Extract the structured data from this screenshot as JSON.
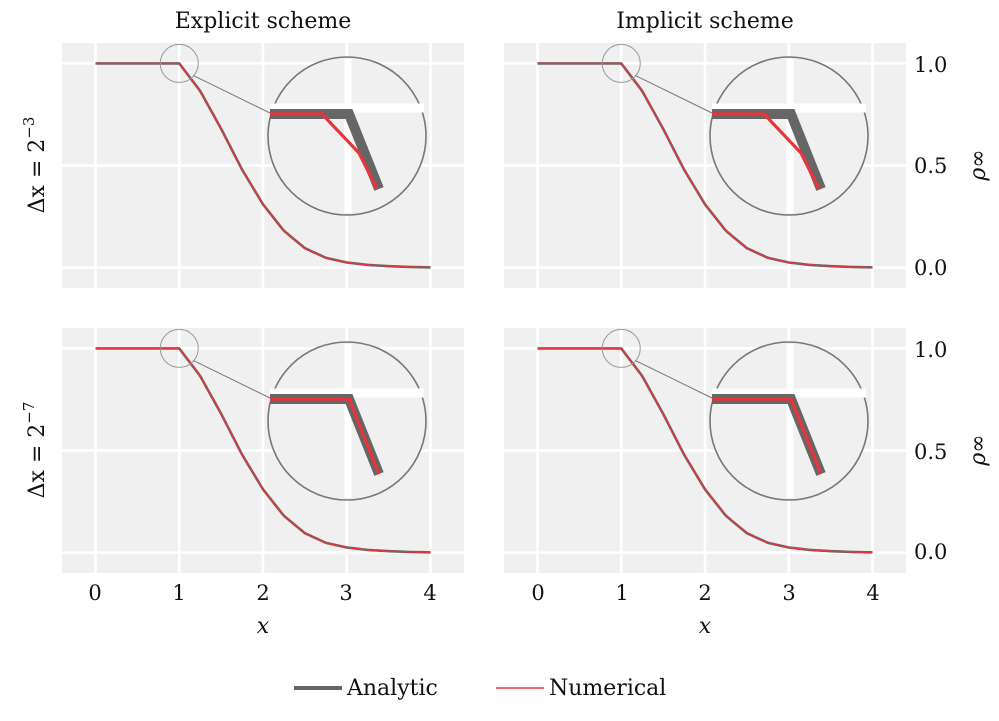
{
  "figure": {
    "colors": {
      "analytic": "#666666",
      "numerical": "#e8343a",
      "panel_bg": "#f0f0f0",
      "grid": "#ffffff",
      "zoom_stroke": "#777777"
    },
    "legend": {
      "analytic_label": "Analytic",
      "numerical_label": "Numerical"
    }
  },
  "chart_data": [
    {
      "type": "line",
      "column_title": "Explicit scheme",
      "row_label_base": "Δx = 2",
      "row_label_exp": "−3",
      "xlabel": "",
      "ylabel": "",
      "xlim": [
        -0.4,
        4.4
      ],
      "ylim": [
        -0.1,
        1.1
      ],
      "zoom_variant": "coarse",
      "series": [
        {
          "name": "Analytic",
          "x": [
            0,
            0.5,
            1,
            1.25,
            1.5,
            1.75,
            2,
            2.25,
            2.5,
            2.75,
            3,
            3.25,
            3.5,
            3.75,
            4
          ],
          "y": [
            1,
            1,
            1,
            0.865,
            0.68,
            0.48,
            0.31,
            0.18,
            0.095,
            0.048,
            0.025,
            0.013,
            0.007,
            0.003,
            0.001
          ]
        },
        {
          "name": "Numerical",
          "x": [
            0,
            0.5,
            1,
            1.25,
            1.5,
            1.75,
            2,
            2.25,
            2.5,
            2.75,
            3,
            3.25,
            3.5,
            3.75,
            4
          ],
          "y": [
            1,
            1,
            1,
            0.865,
            0.68,
            0.48,
            0.31,
            0.18,
            0.095,
            0.048,
            0.025,
            0.013,
            0.007,
            0.003,
            0.001
          ]
        }
      ]
    },
    {
      "type": "line",
      "column_title": "Implicit scheme",
      "xlabel": "",
      "ylabel": "ρ∞",
      "yticks": [
        "1.0",
        "0.5",
        "0.0"
      ],
      "xlim": [
        -0.4,
        4.4
      ],
      "ylim": [
        -0.1,
        1.1
      ],
      "zoom_variant": "coarse",
      "series": [
        {
          "name": "Analytic",
          "x": [
            0,
            0.5,
            1,
            1.25,
            1.5,
            1.75,
            2,
            2.25,
            2.5,
            2.75,
            3,
            3.25,
            3.5,
            3.75,
            4
          ],
          "y": [
            1,
            1,
            1,
            0.865,
            0.68,
            0.48,
            0.31,
            0.18,
            0.095,
            0.048,
            0.025,
            0.013,
            0.007,
            0.003,
            0.001
          ]
        },
        {
          "name": "Numerical",
          "x": [
            0,
            0.5,
            1,
            1.25,
            1.5,
            1.75,
            2,
            2.25,
            2.5,
            2.75,
            3,
            3.25,
            3.5,
            3.75,
            4
          ],
          "y": [
            1,
            1,
            1,
            0.865,
            0.68,
            0.48,
            0.31,
            0.18,
            0.095,
            0.048,
            0.025,
            0.013,
            0.007,
            0.003,
            0.001
          ]
        }
      ]
    },
    {
      "type": "line",
      "row_label_base": "Δx = 2",
      "row_label_exp": "−7",
      "xlabel": "x",
      "ylabel": "",
      "xticks": [
        "0",
        "1",
        "2",
        "3",
        "4"
      ],
      "xlim": [
        -0.4,
        4.4
      ],
      "ylim": [
        -0.1,
        1.1
      ],
      "zoom_variant": "fine",
      "series": [
        {
          "name": "Analytic",
          "x": [
            0,
            0.5,
            1,
            1.25,
            1.5,
            1.75,
            2,
            2.25,
            2.5,
            2.75,
            3,
            3.25,
            3.5,
            3.75,
            4
          ],
          "y": [
            1,
            1,
            1,
            0.865,
            0.68,
            0.48,
            0.31,
            0.18,
            0.095,
            0.048,
            0.025,
            0.013,
            0.007,
            0.003,
            0.001
          ]
        },
        {
          "name": "Numerical",
          "x": [
            0,
            0.5,
            1,
            1.25,
            1.5,
            1.75,
            2,
            2.25,
            2.5,
            2.75,
            3,
            3.25,
            3.5,
            3.75,
            4
          ],
          "y": [
            1,
            1,
            1,
            0.865,
            0.68,
            0.48,
            0.31,
            0.18,
            0.095,
            0.048,
            0.025,
            0.013,
            0.007,
            0.003,
            0.001
          ]
        }
      ]
    },
    {
      "type": "line",
      "xlabel": "x",
      "ylabel": "ρ∞",
      "xticks": [
        "0",
        "1",
        "2",
        "3",
        "4"
      ],
      "yticks": [
        "1.0",
        "0.5",
        "0.0"
      ],
      "xlim": [
        -0.4,
        4.4
      ],
      "ylim": [
        -0.1,
        1.1
      ],
      "zoom_variant": "fine",
      "series": [
        {
          "name": "Analytic",
          "x": [
            0,
            0.5,
            1,
            1.25,
            1.5,
            1.75,
            2,
            2.25,
            2.5,
            2.75,
            3,
            3.25,
            3.5,
            3.75,
            4
          ],
          "y": [
            1,
            1,
            1,
            0.865,
            0.68,
            0.48,
            0.31,
            0.18,
            0.095,
            0.048,
            0.025,
            0.013,
            0.007,
            0.003,
            0.001
          ]
        },
        {
          "name": "Numerical",
          "x": [
            0,
            0.5,
            1,
            1.25,
            1.5,
            1.75,
            2,
            2.25,
            2.5,
            2.75,
            3,
            3.25,
            3.5,
            3.75,
            4
          ],
          "y": [
            1,
            1,
            1,
            0.865,
            0.68,
            0.48,
            0.31,
            0.18,
            0.095,
            0.048,
            0.025,
            0.013,
            0.007,
            0.003,
            0.001
          ]
        }
      ]
    }
  ]
}
